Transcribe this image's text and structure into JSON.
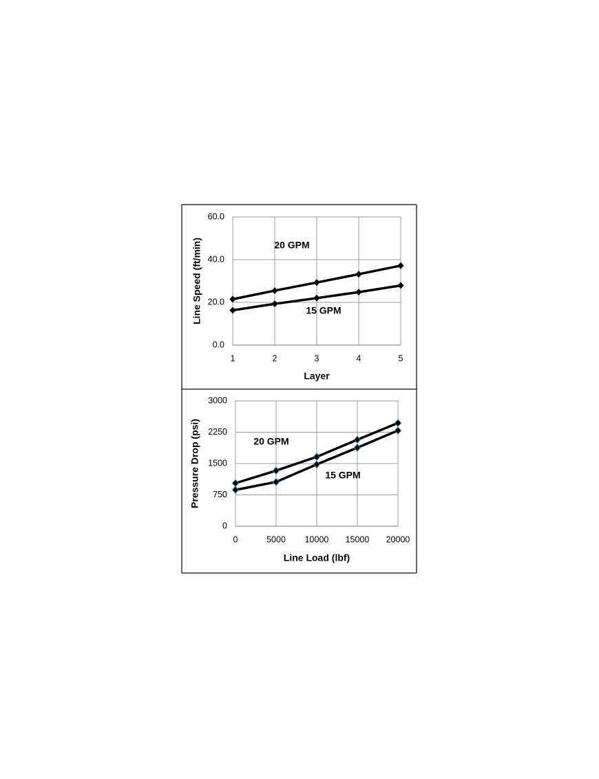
{
  "chart_data": [
    {
      "type": "line",
      "x_label": "Layer",
      "y_label": "Line Speed (ft/min)",
      "x": [
        1,
        2,
        3,
        4,
        5
      ],
      "xlim": [
        1,
        5
      ],
      "xticks": [
        1,
        2,
        3,
        4,
        5
      ],
      "ylim": [
        0,
        60
      ],
      "yticks": [
        {
          "value": 0,
          "label": "0.0"
        },
        {
          "value": 20,
          "label": "20.0"
        },
        {
          "value": 40,
          "label": "40.0"
        },
        {
          "value": 60,
          "label": "60.0"
        }
      ],
      "grid": true,
      "series": [
        {
          "name": "20 GPM",
          "color": "#000000",
          "values": [
            21.5,
            25.5,
            29.3,
            33.2,
            37.2
          ]
        },
        {
          "name": "15 GPM",
          "color": "#000000",
          "values": [
            16.3,
            19.3,
            22.0,
            24.8,
            27.9
          ]
        }
      ]
    },
    {
      "type": "line",
      "x_label": "Line Load (lbf)",
      "y_label": "Pressure Drop  (psi)",
      "x": [
        0,
        5000,
        10000,
        15000,
        20000
      ],
      "xlim": [
        0,
        20000
      ],
      "xticks": [
        0,
        5000,
        10000,
        15000,
        20000
      ],
      "ylim": [
        0,
        3000
      ],
      "yticks": [
        0,
        750,
        1500,
        2250,
        3000
      ],
      "grid": true,
      "series": [
        {
          "name": "20 GPM",
          "color": "#000000",
          "values": [
            1030,
            1330,
            1660,
            2070,
            2470
          ]
        },
        {
          "name": "15 GPM",
          "color": "#000000",
          "values": [
            870,
            1060,
            1480,
            1880,
            2290
          ]
        }
      ]
    }
  ]
}
